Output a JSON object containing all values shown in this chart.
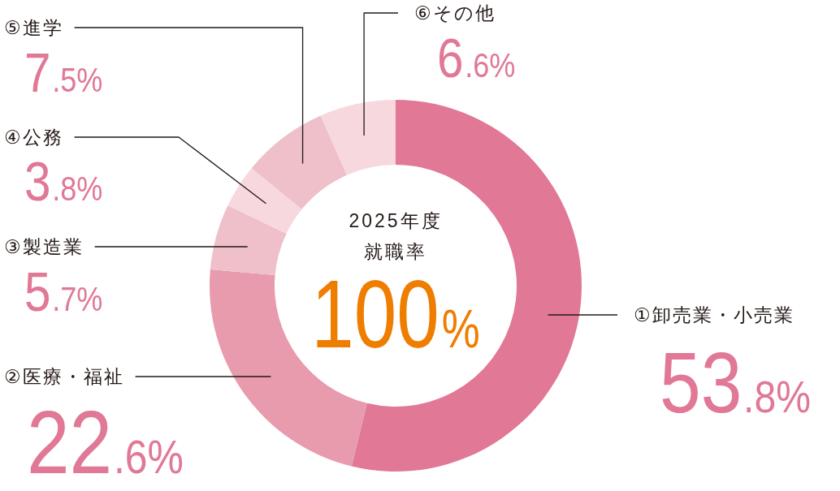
{
  "chart_data": {
    "type": "donut",
    "title": "2025年度",
    "subtitle": "就職率",
    "annotations": [
      "100%"
    ],
    "categories": [
      "①卸売業・小売業",
      "②医療・福祉",
      "③製造業",
      "④公務",
      "⑤進学",
      "⑥その他"
    ],
    "values": [
      53.8,
      22.6,
      5.7,
      3.8,
      7.5,
      6.6
    ],
    "colors": [
      "#e07896",
      "#e79bac",
      "#efbfca",
      "#f6d8de",
      "#efbfca",
      "#f6d8de"
    ],
    "value_labels": [
      "53.8%",
      "22.6%",
      "5.7%",
      "3.8%",
      "7.5%",
      "6.6%"
    ]
  }
}
